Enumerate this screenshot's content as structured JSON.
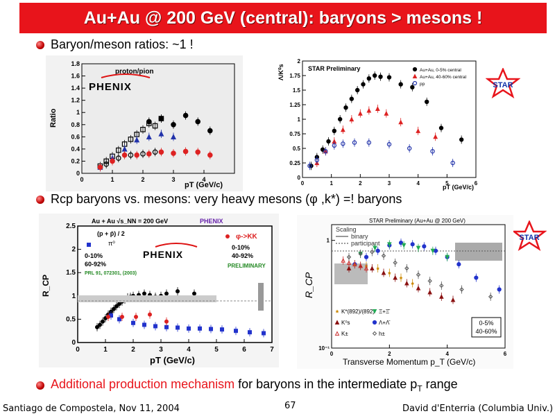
{
  "title": "Au+Au @ 200 GeV (central): baryons > mesons !",
  "bullets": {
    "b1": "Baryon/meson ratios: ~1 !",
    "b2": "Rcp baryons vs. mesons:  very heavy mesons (φ ,k*) =! baryons",
    "b3_red": "Additional production mechanism",
    "b3_rest": " for baryons in the intermediate p",
    "b3_sub": "T",
    "b3_end": " range"
  },
  "footer": {
    "left": "Santiago de Compostela, Nov 11, 2004",
    "page": "67",
    "right": "David d'Enterria (Columbia Univ.)"
  },
  "star_logo": "STAR",
  "chart_data": [
    {
      "type": "scatter",
      "title": "proton/pion",
      "logo": "PHENIX",
      "ylabel": "Ratio",
      "xlabel": "pT (GeV/c)",
      "xlim": [
        0,
        5
      ],
      "ylim": [
        0,
        1.8
      ],
      "xticks": [
        "0",
        "1",
        "2",
        "3",
        "4"
      ],
      "yticks": [
        "0",
        "0.2",
        "0.4",
        "0.6",
        "0.8",
        "1",
        "1.2",
        "1.4",
        "1.6",
        "1.8"
      ],
      "series": [
        {
          "color": "#000000",
          "marker": "open-square",
          "x": [
            0.6,
            0.8,
            1.0,
            1.2,
            1.4,
            1.6,
            1.8,
            2.0,
            2.2,
            2.4,
            2.6
          ],
          "y": [
            0.12,
            0.2,
            0.28,
            0.38,
            0.48,
            0.56,
            0.64,
            0.72,
            0.82,
            0.78,
            0.9
          ]
        },
        {
          "color": "#000000",
          "marker": "filled-circle",
          "x": [
            2.2,
            2.6,
            3.0,
            3.4,
            3.8,
            4.2
          ],
          "y": [
            0.85,
            0.9,
            0.8,
            0.95,
            0.85,
            0.7
          ]
        },
        {
          "color": "#2233aa",
          "marker": "filled-triangle",
          "x": [
            0.6,
            1.0,
            1.4,
            1.8,
            2.2,
            2.6,
            3.0
          ],
          "y": [
            0.1,
            0.25,
            0.4,
            0.55,
            0.6,
            0.65,
            0.6
          ]
        },
        {
          "color": "#000000",
          "marker": "open-circle",
          "x": [
            0.8,
            1.2,
            1.6,
            2.0,
            2.4
          ],
          "y": [
            0.15,
            0.25,
            0.3,
            0.32,
            0.35
          ]
        },
        {
          "color": "#dd2222",
          "marker": "filled-circle",
          "x": [
            0.6,
            1.0,
            1.4,
            1.8,
            2.2,
            2.6,
            3.0,
            3.4,
            3.8,
            4.2
          ],
          "y": [
            0.1,
            0.2,
            0.3,
            0.3,
            0.32,
            0.35,
            0.33,
            0.36,
            0.35,
            0.3
          ]
        }
      ]
    },
    {
      "type": "scatter",
      "title": "STAR Preliminary",
      "ylabel": "Λ/K⁰s",
      "xlabel": "pT (GeV/c)",
      "xlim": [
        0,
        6
      ],
      "ylim": [
        0,
        2
      ],
      "xticks": [
        "0",
        "1",
        "2",
        "3",
        "4",
        "5",
        "6"
      ],
      "yticks": [
        "0",
        "0.25",
        "0.5",
        "0.75",
        "1",
        "1.25",
        "1.5",
        "1.75",
        "2"
      ],
      "legend": [
        "Au+Au, 0-5% central",
        "Au+Au, 40-60% central",
        "pp"
      ],
      "series": [
        {
          "name": "Au+Au, 0-5% central",
          "color": "#000000",
          "marker": "filled-circle",
          "x": [
            0.3,
            0.5,
            0.7,
            0.9,
            1.1,
            1.3,
            1.5,
            1.7,
            1.9,
            2.1,
            2.3,
            2.5,
            2.7,
            3.0,
            3.4,
            3.8,
            4.3,
            4.8,
            5.5
          ],
          "y": [
            0.2,
            0.35,
            0.48,
            0.62,
            0.8,
            1.0,
            1.2,
            1.35,
            1.5,
            1.6,
            1.7,
            1.75,
            1.73,
            1.72,
            1.6,
            1.55,
            1.3,
            0.85,
            0.65
          ]
        },
        {
          "name": "Au+Au, 40-60% central",
          "color": "#dd2222",
          "marker": "filled-triangle",
          "x": [
            0.5,
            0.8,
            1.1,
            1.4,
            1.7,
            2.0,
            2.3,
            2.6,
            2.9,
            3.4,
            4.0,
            4.6
          ],
          "y": [
            0.25,
            0.45,
            0.62,
            0.82,
            1.0,
            1.1,
            1.15,
            1.18,
            1.1,
            0.95,
            0.8,
            0.7
          ]
        },
        {
          "name": "pp",
          "color": "#2233aa",
          "marker": "open-circle",
          "x": [
            0.25,
            0.5,
            0.8,
            1.1,
            1.4,
            1.8,
            2.3,
            3.0,
            3.7,
            4.5,
            5.2
          ],
          "y": [
            0.2,
            0.3,
            0.45,
            0.55,
            0.58,
            0.6,
            0.6,
            0.57,
            0.5,
            0.45,
            0.25
          ]
        }
      ]
    },
    {
      "type": "scatter",
      "title": "Au + Au  √s_NN = 200 GeV",
      "logo": "PHENIX",
      "ylabel": "R_CP",
      "xlabel": "pT (GeV/c)",
      "xlim": [
        0,
        7
      ],
      "ylim": [
        0,
        2.5
      ],
      "xticks": [
        "0",
        "1",
        "2",
        "3",
        "4",
        "5",
        "6",
        "7"
      ],
      "yticks": [
        "0",
        "0.5",
        "1",
        "1.5",
        "2",
        "2.5"
      ],
      "labels": [
        "(p + p̄) / 2",
        "π⁰",
        "0-10%",
        "60-92%",
        "PRL 91, 072301, (2003)",
        "φ->KK",
        "0-10%",
        "40-92%",
        "PRELIMINARY",
        "PHENIX"
      ],
      "series": [
        {
          "name": "(p + p̄) / 2",
          "color": "#000000",
          "marker": "filled-circle",
          "x": [
            0.7,
            0.8,
            0.9,
            1.0,
            1.1,
            1.2,
            1.3,
            1.4,
            1.5,
            1.6,
            1.7,
            1.8,
            1.9,
            2.0,
            2.2,
            2.4,
            2.6,
            2.8,
            3.0,
            3.2,
            3.6,
            4.2
          ],
          "y": [
            0.33,
            0.38,
            0.45,
            0.52,
            0.6,
            0.66,
            0.72,
            0.78,
            0.83,
            0.88,
            0.92,
            0.97,
            0.98,
            1.0,
            1.02,
            1.05,
            1.02,
            0.98,
            1.0,
            1.05,
            1.1,
            1.05
          ]
        },
        {
          "name": "π⁰",
          "color": "#2233cc",
          "marker": "filled-square",
          "x": [
            1.2,
            1.5,
            2.0,
            2.4,
            2.8,
            3.2,
            3.6,
            4.0,
            4.4,
            4.8,
            5.2,
            5.7,
            6.2,
            6.7
          ],
          "y": [
            0.58,
            0.5,
            0.42,
            0.38,
            0.35,
            0.33,
            0.32,
            0.3,
            0.3,
            0.29,
            0.28,
            0.25,
            0.22,
            0.2
          ]
        },
        {
          "name": "φ->KK",
          "color": "#dd2222",
          "marker": "filled-circle",
          "x": [
            1.1,
            1.6,
            2.1,
            2.6,
            3.2
          ],
          "y": [
            0.55,
            0.55,
            0.55,
            0.6,
            0.45
          ]
        }
      ]
    },
    {
      "type": "scatter",
      "title": "STAR Preliminary (Au+Au @ 200 GeV)",
      "ylabel": "R_CP",
      "xlabel": "Transverse Momentum p_T (GeV/c)",
      "xlim": [
        0,
        6
      ],
      "ylim": [
        0.1,
        1.4
      ],
      "yscale": "log",
      "xticks": [
        "0",
        "2",
        "4",
        "6"
      ],
      "yticks": [
        "10⁻¹",
        "1"
      ],
      "legend": [
        "Scaling",
        "binary",
        "participant"
      ],
      "species": [
        "K*(892)/(892)",
        "Ξ+Ξ̄",
        "K⁰s",
        "Λ+Λ̄",
        "K±",
        "h±"
      ],
      "centrality": [
        "0-5%",
        "40-60%"
      ],
      "series": [
        {
          "name": "K⁰s",
          "color": "#8a1010",
          "marker": "filled-triangle",
          "x": [
            0.6,
            1.0,
            1.4,
            1.8,
            2.2,
            2.6,
            3.0,
            3.4,
            3.8,
            4.2
          ],
          "y": [
            0.55,
            0.58,
            0.55,
            0.5,
            0.45,
            0.4,
            0.36,
            0.33,
            0.3,
            0.28
          ]
        },
        {
          "name": "Λ+Λ̄",
          "color": "#2233cc",
          "marker": "filled-circle",
          "x": [
            0.8,
            1.2,
            1.6,
            2.0,
            2.4,
            2.8,
            3.2,
            3.6,
            4.0,
            4.4,
            5.0,
            5.8
          ],
          "y": [
            0.6,
            0.7,
            0.8,
            0.9,
            0.95,
            0.92,
            0.88,
            0.8,
            0.7,
            0.6,
            0.45,
            0.35
          ]
        },
        {
          "name": "Ξ+Ξ̄",
          "color": "#22aa55",
          "marker": "filled-triangle-down",
          "x": [
            1.0,
            1.5,
            2.0,
            2.5,
            3.0,
            3.5,
            4.0
          ],
          "y": [
            0.75,
            0.85,
            0.92,
            0.9,
            0.85,
            0.8,
            0.7
          ]
        },
        {
          "name": "K*",
          "color": "#cc8800",
          "marker": "star",
          "x": [
            0.8,
            1.2,
            1.6,
            2.0,
            2.4,
            2.8
          ],
          "y": [
            0.6,
            0.58,
            0.55,
            0.5,
            0.45,
            0.4
          ]
        },
        {
          "name": "K±",
          "color": "#cc3333",
          "marker": "open-triangle",
          "x": [
            0.4,
            0.6,
            0.8,
            1.0,
            1.2
          ],
          "y": [
            0.65,
            0.62,
            0.6,
            0.58,
            0.55
          ]
        },
        {
          "name": "h±",
          "color": "#555555",
          "marker": "open-diamond",
          "x": [
            0.6,
            1.0,
            1.4,
            1.8,
            2.2,
            2.6,
            3.0,
            3.4,
            3.8,
            4.5,
            5.5
          ],
          "y": [
            0.7,
            0.75,
            0.78,
            0.72,
            0.62,
            0.55,
            0.48,
            0.42,
            0.38,
            0.35,
            0.3
          ]
        }
      ]
    }
  ]
}
